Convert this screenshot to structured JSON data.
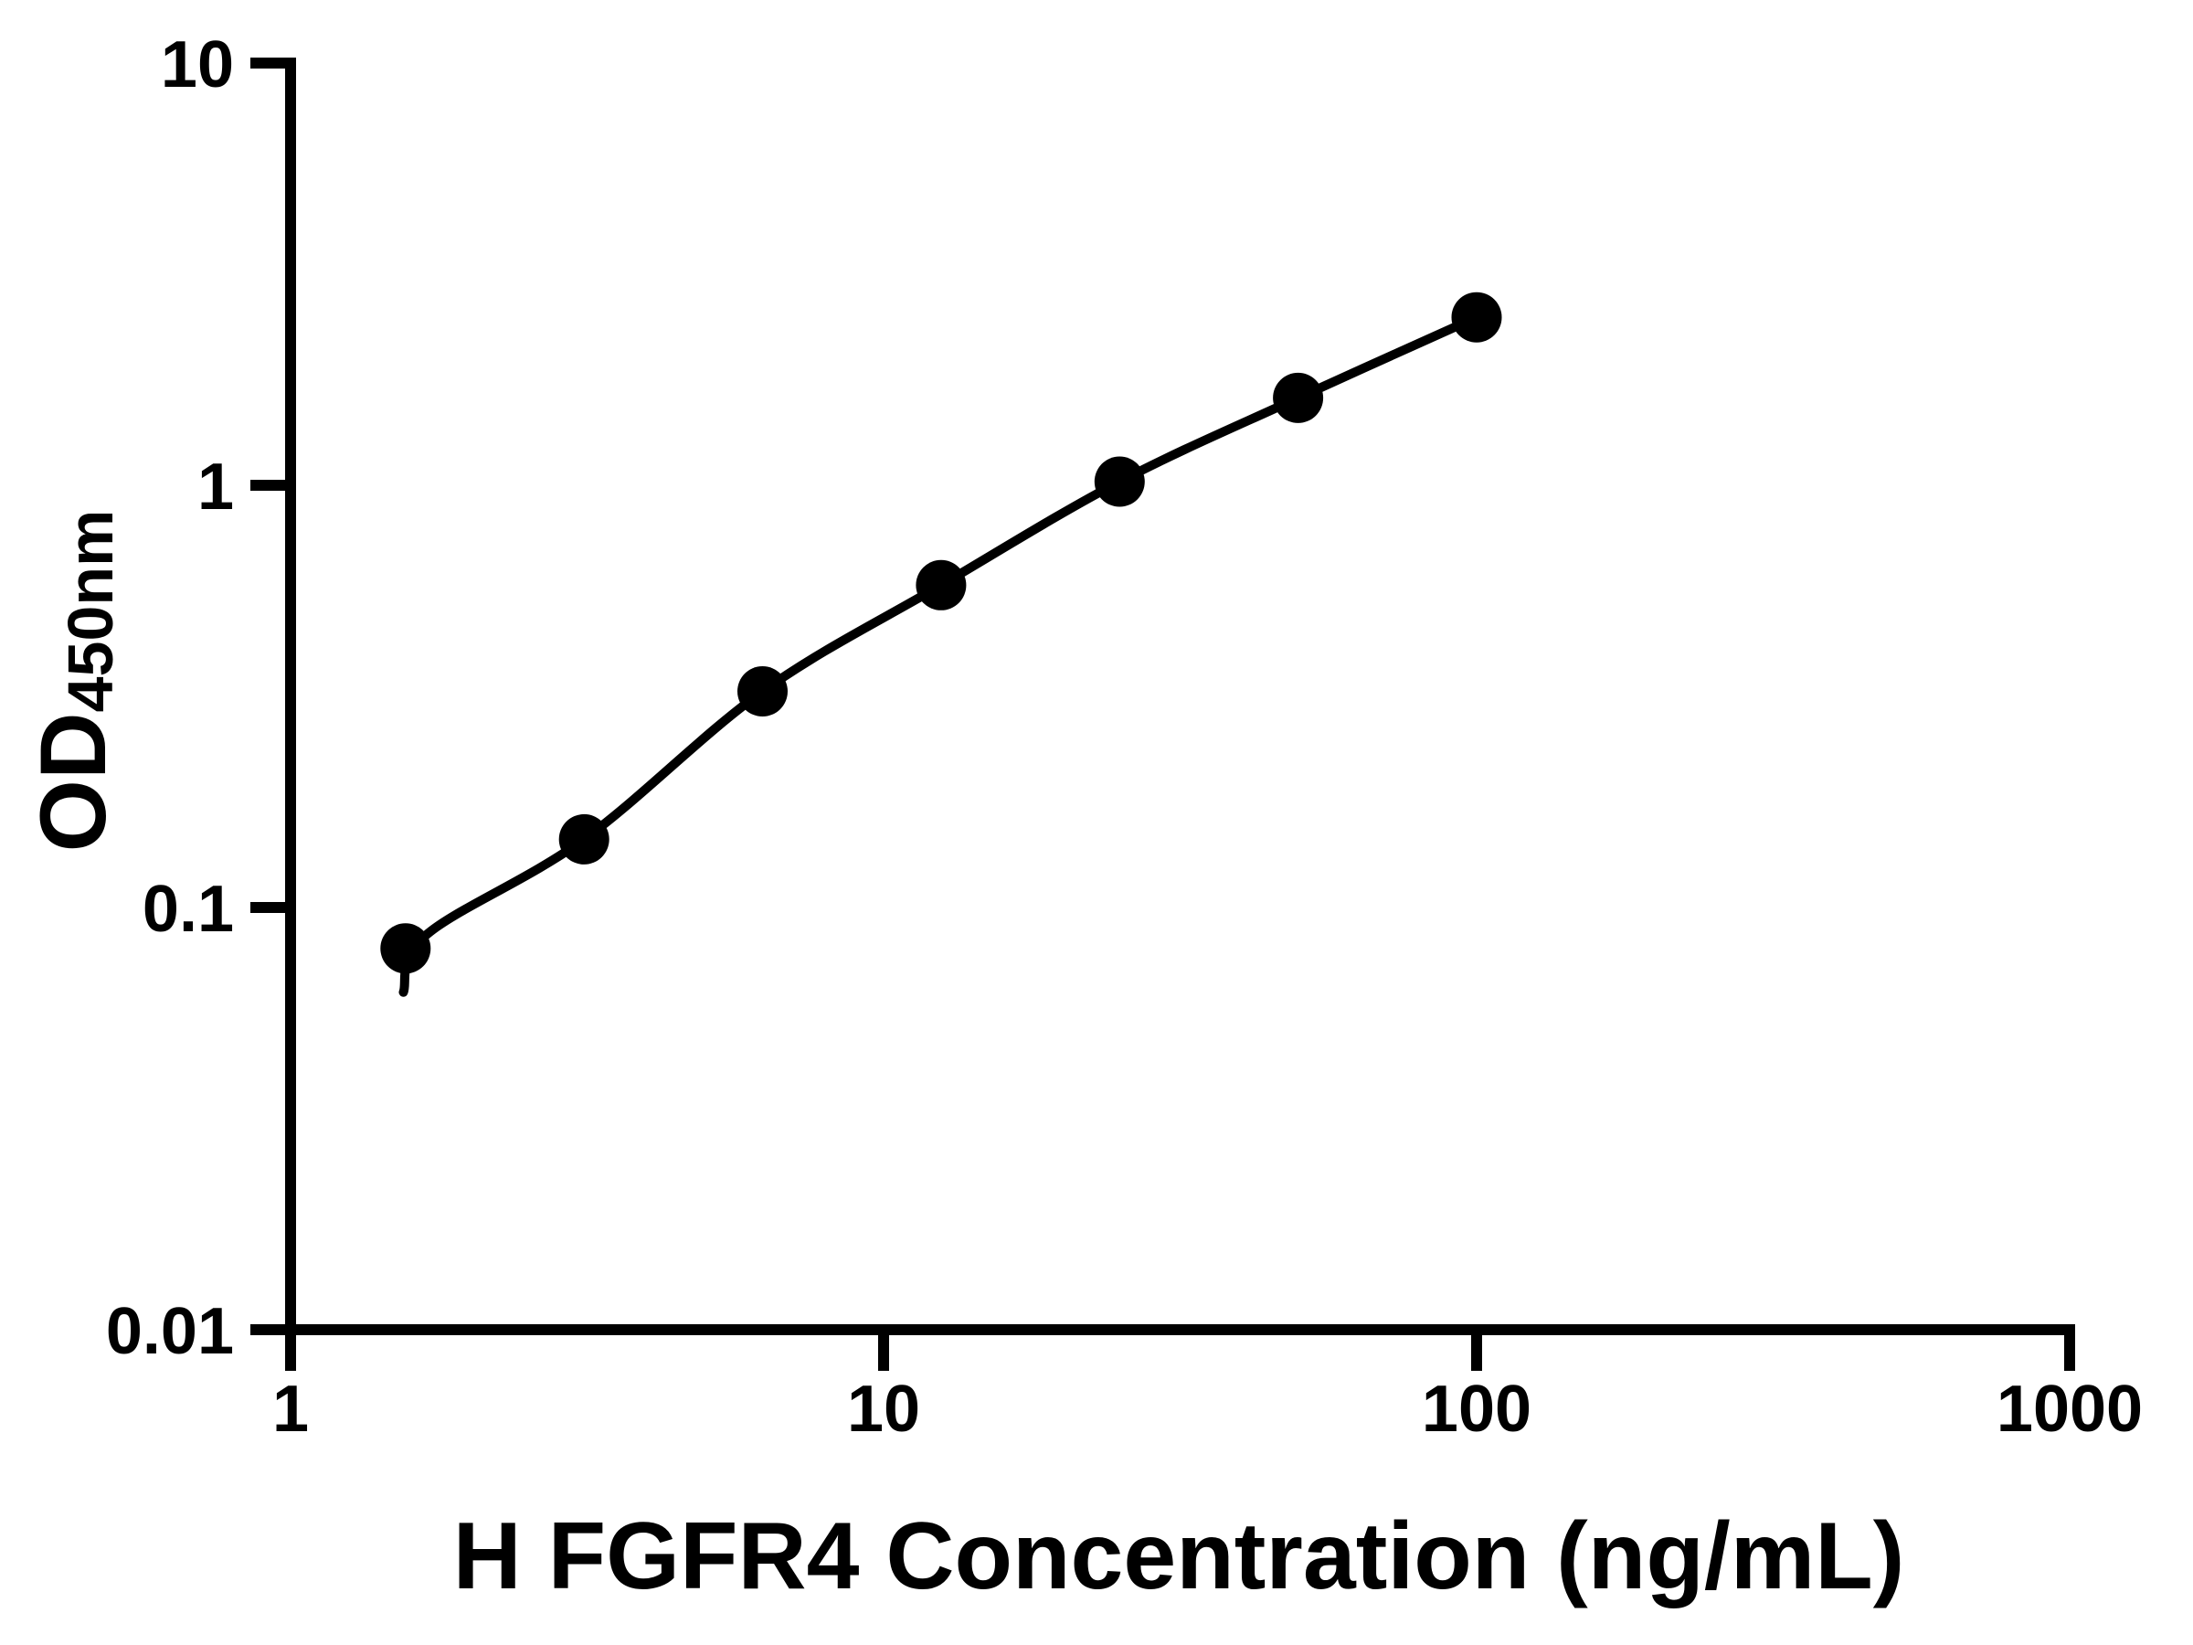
{
  "figure": {
    "background": "#ffffff"
  },
  "chart_data": {
    "type": "scatter",
    "title": "",
    "xlabel": "H FGFR4 Concentration (ng/mL)",
    "ylabel_main": "OD",
    "ylabel_sub": "450nm",
    "x_scale": "log",
    "y_scale": "log",
    "xlim": [
      1,
      1000
    ],
    "ylim": [
      0.01,
      10
    ],
    "grid": false,
    "legend": "none",
    "x_tick_values": [
      1,
      10,
      100,
      1000
    ],
    "x_tick_labels": [
      "1",
      "10",
      "100",
      "1000"
    ],
    "y_tick_values": [
      10,
      1,
      0.1,
      0.01
    ],
    "y_tick_labels": [
      "10",
      "1",
      "0.1",
      "0.01"
    ],
    "series": [
      {
        "name": "standard-points",
        "type": "scatter",
        "marker": "filled-circle",
        "x": [
          1.5625,
          3.125,
          6.25,
          12.5,
          25,
          50,
          100
        ],
        "od": [
          0.08,
          0.145,
          0.325,
          0.58,
          1.02,
          1.61,
          2.5
        ]
      },
      {
        "name": "fit-curve",
        "type": "line",
        "points": [
          [
            1.55,
            0.063
          ],
          [
            1.7,
            0.0865
          ],
          [
            3.125,
            0.145
          ],
          [
            6.25,
            0.325
          ],
          [
            12.5,
            0.58
          ],
          [
            25,
            1.02
          ],
          [
            50,
            1.61
          ],
          [
            100,
            2.5
          ]
        ]
      }
    ],
    "colors": {
      "text": "#000000",
      "axis": "#000000",
      "marker": "#000000",
      "fit_line": "#000000",
      "background": "#ffffff"
    }
  }
}
